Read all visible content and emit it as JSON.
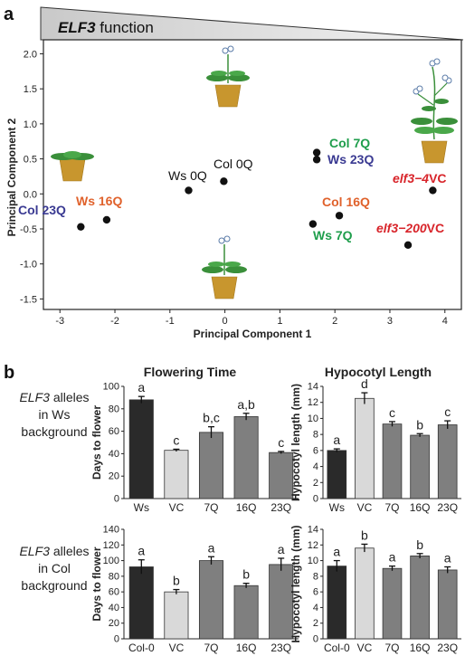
{
  "panel_a": {
    "letter": "a",
    "banner": {
      "prefix": "ELF3",
      "suffix": " function"
    },
    "chart_data": {
      "type": "scatter",
      "xlabel": "Principal Component 1",
      "ylabel": "Principal Component 2",
      "xlim": [
        -3.3,
        4.3
      ],
      "ylim": [
        -1.65,
        2.2
      ],
      "xticks": [
        -3,
        -2,
        -1,
        0,
        1,
        2,
        3,
        4
      ],
      "yticks": [
        -1.5,
        -1.0,
        -0.5,
        0.0,
        0.5,
        1.0,
        1.5,
        2.0
      ],
      "points": [
        {
          "label": "Col 23Q",
          "x": -2.62,
          "y": -0.47,
          "color": "#3a3a92"
        },
        {
          "label": "Ws 16Q",
          "x": -2.15,
          "y": -0.37,
          "color": "#e0622c"
        },
        {
          "label": "Ws 0Q",
          "x": -0.66,
          "y": 0.05,
          "color": "#111111"
        },
        {
          "label": "Col 0Q",
          "x": -0.02,
          "y": 0.18,
          "color": "#111111"
        },
        {
          "label": "Col 7Q",
          "x": 1.67,
          "y": 0.59,
          "color": "#1f9e4c"
        },
        {
          "label": "Ws 23Q",
          "x": 1.67,
          "y": 0.49,
          "color": "#3a3a92"
        },
        {
          "label": "Col 16Q",
          "x": 2.08,
          "y": -0.31,
          "color": "#e0622c"
        },
        {
          "label": "Ws 7Q",
          "x": 1.6,
          "y": -0.43,
          "color": "#1f9e4c"
        },
        {
          "label": "elf3-4 VC",
          "x": 3.78,
          "y": 0.05,
          "color": "#d8242a"
        },
        {
          "label": "elf3-200 VC",
          "x": 3.33,
          "y": -0.73,
          "color": "#d8242a"
        }
      ]
    },
    "labels": {
      "col23q": "Col 23Q",
      "ws16q": "Ws 16Q",
      "ws0q": "Ws 0Q",
      "col0q": "Col 0Q",
      "col7q": "Col 7Q",
      "ws23q": "Ws 23Q",
      "col16q": "Col 16Q",
      "ws7q": "Ws 7Q",
      "elf34": {
        "italic": "elf3−4",
        "plain": "VC"
      },
      "elf3200": {
        "italic": "elf3−200",
        "plain": "VC"
      }
    }
  },
  "panel_b": {
    "letter": "b",
    "row_labels": [
      {
        "gene": "ELF3",
        "line1": " alleles",
        "line2": "in Ws",
        "line3": "background"
      },
      {
        "gene": "ELF3",
        "line1": " alleles",
        "line2": "in Col",
        "line3": "background"
      }
    ],
    "col_titles": [
      "Flowering Time",
      "Hypocotyl Length"
    ],
    "chart_data": [
      {
        "type": "bar",
        "title": "Flowering Time",
        "ylabel": "Days to flower",
        "ylim": [
          0,
          100
        ],
        "yticks": [
          0,
          20,
          40,
          60,
          80,
          100
        ],
        "categories": [
          "Ws",
          "VC",
          "7Q",
          "16Q",
          "23Q"
        ],
        "values": [
          88,
          43,
          59,
          73,
          41
        ],
        "errors": [
          3,
          1,
          5,
          3,
          1
        ],
        "sig": [
          "a",
          "c",
          "b,c",
          "a,b",
          "c"
        ],
        "colors": [
          "#2a2a2a",
          "#d9d9d9",
          "#7f7f7f",
          "#7f7f7f",
          "#7f7f7f"
        ]
      },
      {
        "type": "bar",
        "title": "Hypocotyl Length",
        "ylabel": "Hypocotyl length (mm)",
        "ylim": [
          0,
          14
        ],
        "yticks": [
          0,
          2,
          4,
          6,
          8,
          10,
          12,
          14
        ],
        "categories": [
          "Ws",
          "VC",
          "7Q",
          "16Q",
          "23Q"
        ],
        "values": [
          6.0,
          12.5,
          9.3,
          7.9,
          9.2
        ],
        "errors": [
          0.2,
          0.7,
          0.3,
          0.2,
          0.5
        ],
        "sig": [
          "a",
          "d",
          "c",
          "b",
          "c"
        ],
        "colors": [
          "#2a2a2a",
          "#d9d9d9",
          "#7f7f7f",
          "#7f7f7f",
          "#7f7f7f"
        ]
      },
      {
        "type": "bar",
        "title": "",
        "ylabel": "Days to flower",
        "ylim": [
          0,
          140
        ],
        "yticks": [
          0,
          20,
          40,
          60,
          80,
          100,
          120,
          140
        ],
        "categories": [
          "Col-0",
          "VC",
          "7Q",
          "16Q",
          "23Q"
        ],
        "values": [
          92,
          60,
          100,
          68,
          95
        ],
        "errors": [
          9,
          3,
          5,
          3,
          8
        ],
        "sig": [
          "a",
          "b",
          "a",
          "b",
          "a"
        ],
        "colors": [
          "#2a2a2a",
          "#d9d9d9",
          "#7f7f7f",
          "#7f7f7f",
          "#7f7f7f"
        ]
      },
      {
        "type": "bar",
        "title": "",
        "ylabel": "Hypocotyl length (mm)",
        "ylim": [
          0,
          14
        ],
        "yticks": [
          0,
          2,
          4,
          6,
          8,
          10,
          12,
          14
        ],
        "categories": [
          "Col-0",
          "VC",
          "7Q",
          "16Q",
          "23Q"
        ],
        "values": [
          9.3,
          11.6,
          9.0,
          10.6,
          8.8
        ],
        "errors": [
          0.7,
          0.5,
          0.3,
          0.3,
          0.4
        ],
        "sig": [
          "a",
          "b",
          "a",
          "b",
          "a"
        ],
        "colors": [
          "#2a2a2a",
          "#d9d9d9",
          "#7f7f7f",
          "#7f7f7f",
          "#7f7f7f"
        ]
      }
    ]
  }
}
